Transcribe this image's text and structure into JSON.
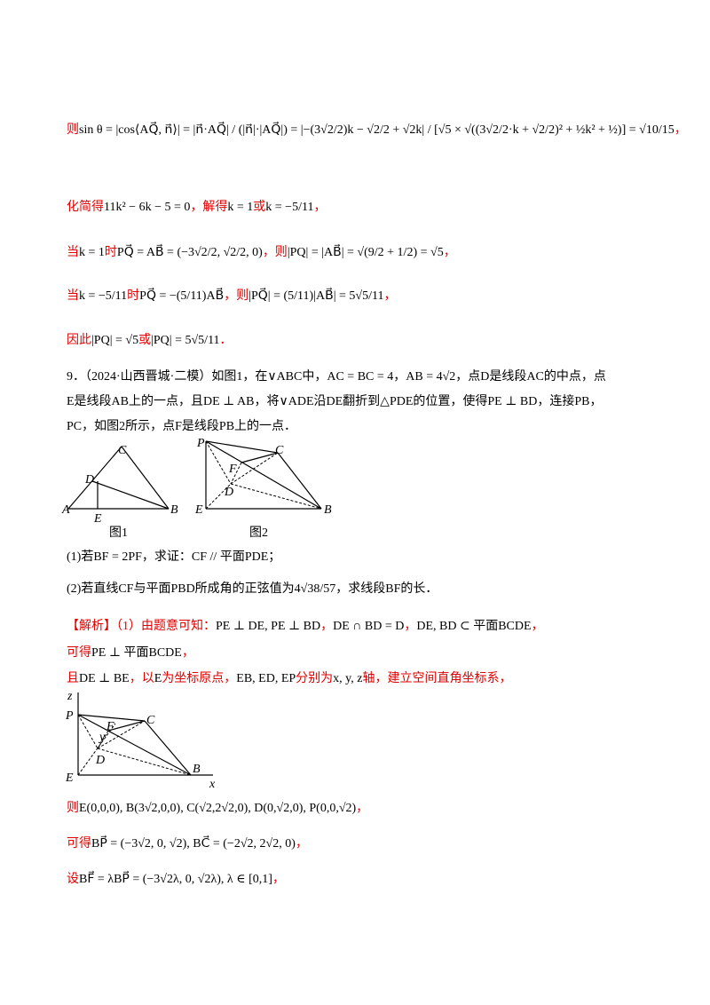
{
  "lines": [
    [
      {
        "t": "则",
        "c": "red"
      },
      {
        "t": "sin θ = |cos⟨AQ⃗, n⃗⟩| = |n⃗·AQ⃗| / (|n⃗|·|AQ⃗|) = |−(3√2/2)k − √2/2 + √2k| / [√5 × √((3√2/2·k + √2/2)² + ½k² + ½)] = √10/15",
        "c": "black"
      },
      {
        "t": "，",
        "c": "red"
      }
    ],
    [
      {
        "t": "化简得",
        "c": "red"
      },
      {
        "t": "11k² − 6k − 5 = 0",
        "c": "black"
      },
      {
        "t": "，解得",
        "c": "red"
      },
      {
        "t": "k = 1",
        "c": "black"
      },
      {
        "t": "或",
        "c": "red"
      },
      {
        "t": "k = −5/11",
        "c": "black"
      },
      {
        "t": "，",
        "c": "red"
      }
    ],
    [
      {
        "t": "当",
        "c": "red"
      },
      {
        "t": "k = 1",
        "c": "black"
      },
      {
        "t": "时",
        "c": "red"
      },
      {
        "t": "PQ⃗ = AB⃗ = (−3√2/2, √2/2, 0)",
        "c": "black"
      },
      {
        "t": "，则",
        "c": "red"
      },
      {
        "t": "|PQ| = |AB⃗| = √(9/2 + 1/2) = √5",
        "c": "black"
      },
      {
        "t": "，",
        "c": "red"
      }
    ],
    [
      {
        "t": "当",
        "c": "red"
      },
      {
        "t": "k = −5/11",
        "c": "black"
      },
      {
        "t": "时",
        "c": "red"
      },
      {
        "t": "PQ⃗ = −(5/11)AB⃗",
        "c": "black"
      },
      {
        "t": "，则",
        "c": "red"
      },
      {
        "t": "|PQ⃗| = (5/11)|AB⃗| = 5√5/11",
        "c": "black"
      },
      {
        "t": "，",
        "c": "red"
      }
    ],
    [
      {
        "t": "因此",
        "c": "red"
      },
      {
        "t": "|PQ| = √5",
        "c": "black"
      },
      {
        "t": "或",
        "c": "red"
      },
      {
        "t": "|PQ| = 5√5/11",
        "c": "black"
      },
      {
        "t": "．",
        "c": "red"
      }
    ],
    [
      {
        "t": "9．（2024·山西晋城·二模）如图1，在∨ABC中，AC = BC = 4，AB = 4√2，点D是线段AC的中点，点",
        "c": "black"
      }
    ],
    [
      {
        "t": "E是线段AB上的一点，且DE ⊥ AB，将∨ADE沿DE翻折到△PDE的位置，使得PE ⊥ BD，连接PB，",
        "c": "black"
      }
    ],
    [
      {
        "t": "PC，如图2所示，点F是线段PB上的一点．",
        "c": "black"
      }
    ],
    [
      {
        "t": "(1)若BF = 2PF，求证：CF // 平面PDE；",
        "c": "black"
      }
    ],
    [
      {
        "t": "(2)若直线CF与平面PBD所成角的正弦值为4√38/57，求线段BF的长．",
        "c": "black"
      }
    ],
    [
      {
        "t": "【解析】（1）由题意可知：",
        "c": "red"
      },
      {
        "t": "PE ⊥ DE, PE ⊥ BD",
        "c": "black"
      },
      {
        "t": "，",
        "c": "red"
      },
      {
        "t": "DE ∩ BD = D",
        "c": "black"
      },
      {
        "t": "，",
        "c": "red"
      },
      {
        "t": "DE, BD ⊂ 平面BCDE",
        "c": "black"
      },
      {
        "t": "，",
        "c": "red"
      }
    ],
    [
      {
        "t": "可得",
        "c": "red"
      },
      {
        "t": "PE ⊥ 平面BCDE",
        "c": "black"
      },
      {
        "t": "，",
        "c": "red"
      }
    ],
    [
      {
        "t": "且",
        "c": "red"
      },
      {
        "t": "DE ⊥ BE",
        "c": "black"
      },
      {
        "t": "，以",
        "c": "red"
      },
      {
        "t": "E",
        "c": "black"
      },
      {
        "t": "为坐标原点，",
        "c": "red"
      },
      {
        "t": "EB, ED, EP",
        "c": "black"
      },
      {
        "t": "分别为",
        "c": "red"
      },
      {
        "t": "x, y, z",
        "c": "black"
      },
      {
        "t": "轴，建立空间直角坐标系，",
        "c": "red"
      }
    ],
    [
      {
        "t": "则",
        "c": "red"
      },
      {
        "t": "E(0,0,0), B(3√2,0,0), C(√2,2√2,0), D(0,√2,0), P(0,0,√2)",
        "c": "black"
      },
      {
        "t": "，",
        "c": "red"
      }
    ],
    [
      {
        "t": "可得",
        "c": "red"
      },
      {
        "t": "BP⃗ = (−3√2, 0, √2), BC⃗ = (−2√2, 2√2, 0)",
        "c": "black"
      },
      {
        "t": "，",
        "c": "red"
      }
    ],
    [
      {
        "t": "设",
        "c": "red"
      },
      {
        "t": "BF⃗ = λBP⃗ = (−3√2λ, 0, √2λ), λ ∈ [0,1]",
        "c": "black"
      },
      {
        "t": "，",
        "c": "red"
      }
    ]
  ],
  "figures": {
    "fig1": {
      "labels": [
        "C",
        "D",
        "A",
        "E",
        "B"
      ],
      "caption": "图1"
    },
    "fig2": {
      "labels": [
        "P",
        "C",
        "F",
        "D",
        "E",
        "B"
      ],
      "caption": "图2"
    },
    "fig3": {
      "labels": [
        "z",
        "P",
        "C",
        "F",
        "y",
        "D",
        "E",
        "B",
        "x"
      ]
    }
  }
}
